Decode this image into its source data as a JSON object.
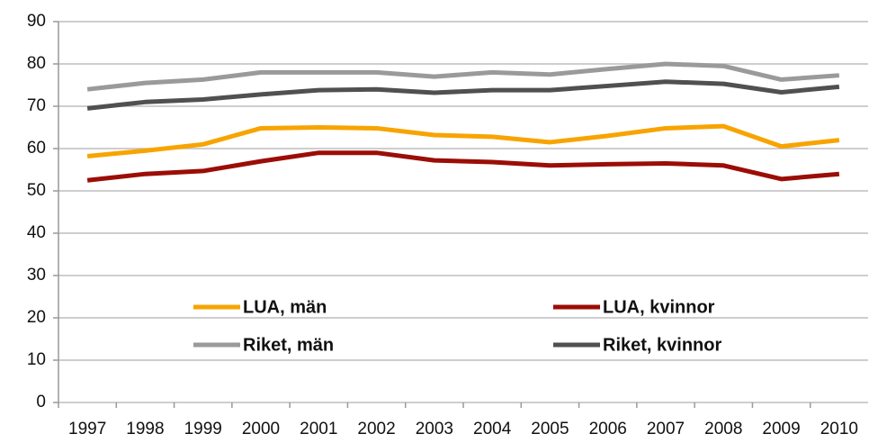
{
  "chart_data": {
    "type": "line",
    "categories": [
      "1997",
      "1998",
      "1999",
      "2000",
      "2001",
      "2002",
      "2003",
      "2004",
      "2005",
      "2006",
      "2007",
      "2008",
      "2009",
      "2010"
    ],
    "series": [
      {
        "name": "LUA, män",
        "color": "#f7a400",
        "values": [
          58.2,
          59.5,
          61,
          64.8,
          65,
          64.8,
          63.2,
          62.8,
          61.5,
          63,
          64.8,
          65.3,
          60.5,
          62
        ]
      },
      {
        "name": "LUA, kvinnor",
        "color": "#9b0d06",
        "values": [
          52.5,
          54,
          54.7,
          57,
          59,
          59,
          57.2,
          56.8,
          56,
          56.3,
          56.5,
          56,
          52.8,
          54
        ]
      },
      {
        "name": "Riket, män",
        "color": "#9a9a9a",
        "values": [
          74,
          75.5,
          76.3,
          78,
          78,
          78,
          77,
          78,
          77.5,
          78.8,
          80,
          79.5,
          76.3,
          77.3
        ]
      },
      {
        "name": "Riket, kvinnor",
        "color": "#505050",
        "values": [
          69.5,
          71,
          71.6,
          72.8,
          73.8,
          74,
          73.2,
          73.8,
          73.8,
          74.8,
          75.8,
          75.3,
          73.3,
          74.6
        ]
      }
    ],
    "ylim": [
      0,
      90
    ],
    "yticks": [
      0,
      10,
      20,
      30,
      40,
      50,
      60,
      70,
      80,
      90
    ],
    "grid": true
  }
}
